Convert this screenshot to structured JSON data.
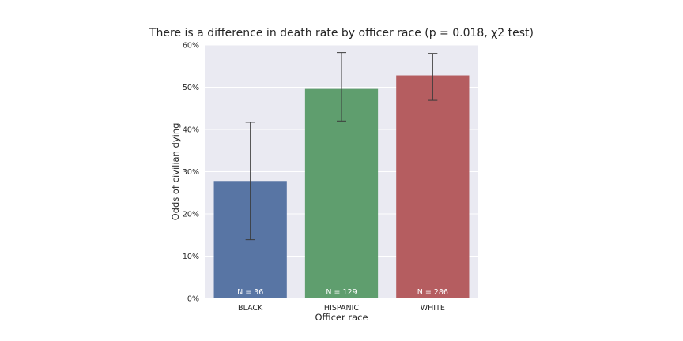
{
  "chart_data": {
    "type": "bar",
    "title": "There is a difference in death rate by officer race (p = 0.018, χ2 test)",
    "xlabel": "Officer race",
    "ylabel": "Odds of civilian dying",
    "categories": [
      "BLACK",
      "HISPANIC",
      "WHITE"
    ],
    "values": [
      0.278,
      0.496,
      0.528
    ],
    "error_low": [
      0.139,
      0.42,
      0.469
    ],
    "error_high": [
      0.417,
      0.582,
      0.58
    ],
    "bar_labels": [
      "N = 36",
      "N = 129",
      "N = 286"
    ],
    "ylim": [
      0,
      0.6
    ],
    "yticks": [
      0,
      0.1,
      0.2,
      0.3,
      0.4,
      0.5,
      0.6
    ],
    "ytick_labels": [
      "0%",
      "10%",
      "20%",
      "30%",
      "40%",
      "50%",
      "60%"
    ],
    "colors": [
      "#5875a4",
      "#5f9e6e",
      "#b55d60"
    ],
    "background": "#eaeaf2",
    "grid": true
  }
}
